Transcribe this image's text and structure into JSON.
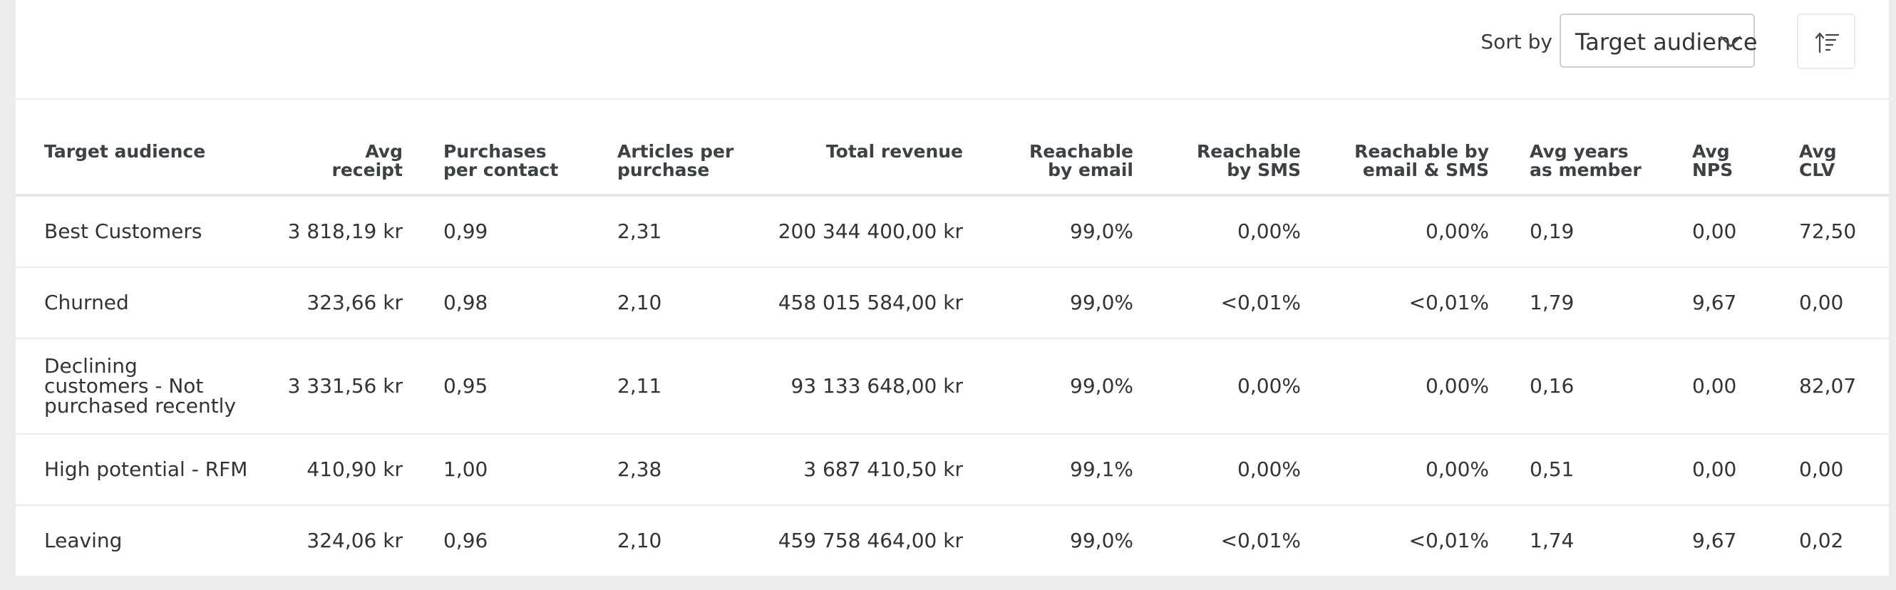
{
  "toolbar": {
    "sort_label": "Sort by",
    "sort_value": "Target audience"
  },
  "table": {
    "headers": [
      "Target audience",
      "Avg\nreceipt",
      "Purchases\nper contact",
      "Articles per\npurchase",
      "Total revenue",
      "Reachable\nby email",
      "Reachable\nby SMS",
      "Reachable by\nemail & SMS",
      "Avg years\nas member",
      "Avg\nNPS",
      "Avg\nCLV"
    ],
    "rows": [
      [
        "Best Customers",
        "3 818,19 kr",
        "0,99",
        "2,31",
        "200 344 400,00 kr",
        "99,0%",
        "0,00%",
        "0,00%",
        "0,19",
        "0,00",
        "72,50"
      ],
      [
        "Churned",
        "323,66 kr",
        "0,98",
        "2,10",
        "458 015 584,00 kr",
        "99,0%",
        "<0,01%",
        "<0,01%",
        "1,79",
        "9,67",
        "0,00"
      ],
      [
        "Declining customers - Not purchased recently",
        "3 331,56 kr",
        "0,95",
        "2,11",
        "93 133 648,00 kr",
        "99,0%",
        "0,00%",
        "0,00%",
        "0,16",
        "0,00",
        "82,07"
      ],
      [
        "High potential - RFM",
        "410,90 kr",
        "1,00",
        "2,38",
        "3 687 410,50 kr",
        "99,1%",
        "0,00%",
        "0,00%",
        "0,51",
        "0,00",
        "0,00"
      ],
      [
        "Leaving",
        "324,06 kr",
        "0,96",
        "2,10",
        "459 758 464,00 kr",
        "99,0%",
        "<0,01%",
        "<0,01%",
        "1,74",
        "9,67",
        "0,02"
      ]
    ]
  }
}
